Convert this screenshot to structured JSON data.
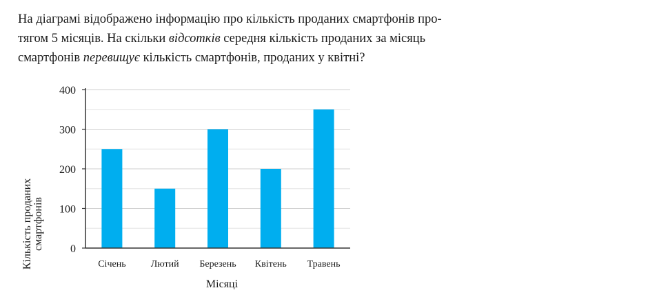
{
  "question": {
    "part1": "На діаграмі відображено інформацію про кількість проданих смартфонів про-",
    "part2": "тягом 5 місяців. На скільки ",
    "part3_italic": "відсотків",
    "part4": " середня кількість проданих за місяць",
    "part5": "смартфонів ",
    "part6_italic": "перевищує",
    "part7": " кількість смартфонів, проданих у квітні?"
  },
  "chart_data": {
    "type": "bar",
    "categories": [
      "Січень",
      "Лютий",
      "Березень",
      "Квітень",
      "Травень"
    ],
    "values": [
      250,
      150,
      300,
      200,
      350
    ],
    "xlabel": "Місяці",
    "ylabel_line1": "Кількість проданих",
    "ylabel_line2": "смартфонів",
    "ylim": [
      0,
      400
    ],
    "yticks": [
      0,
      100,
      200,
      300,
      400
    ],
    "bar_color": "#00aeef",
    "grid": true
  }
}
